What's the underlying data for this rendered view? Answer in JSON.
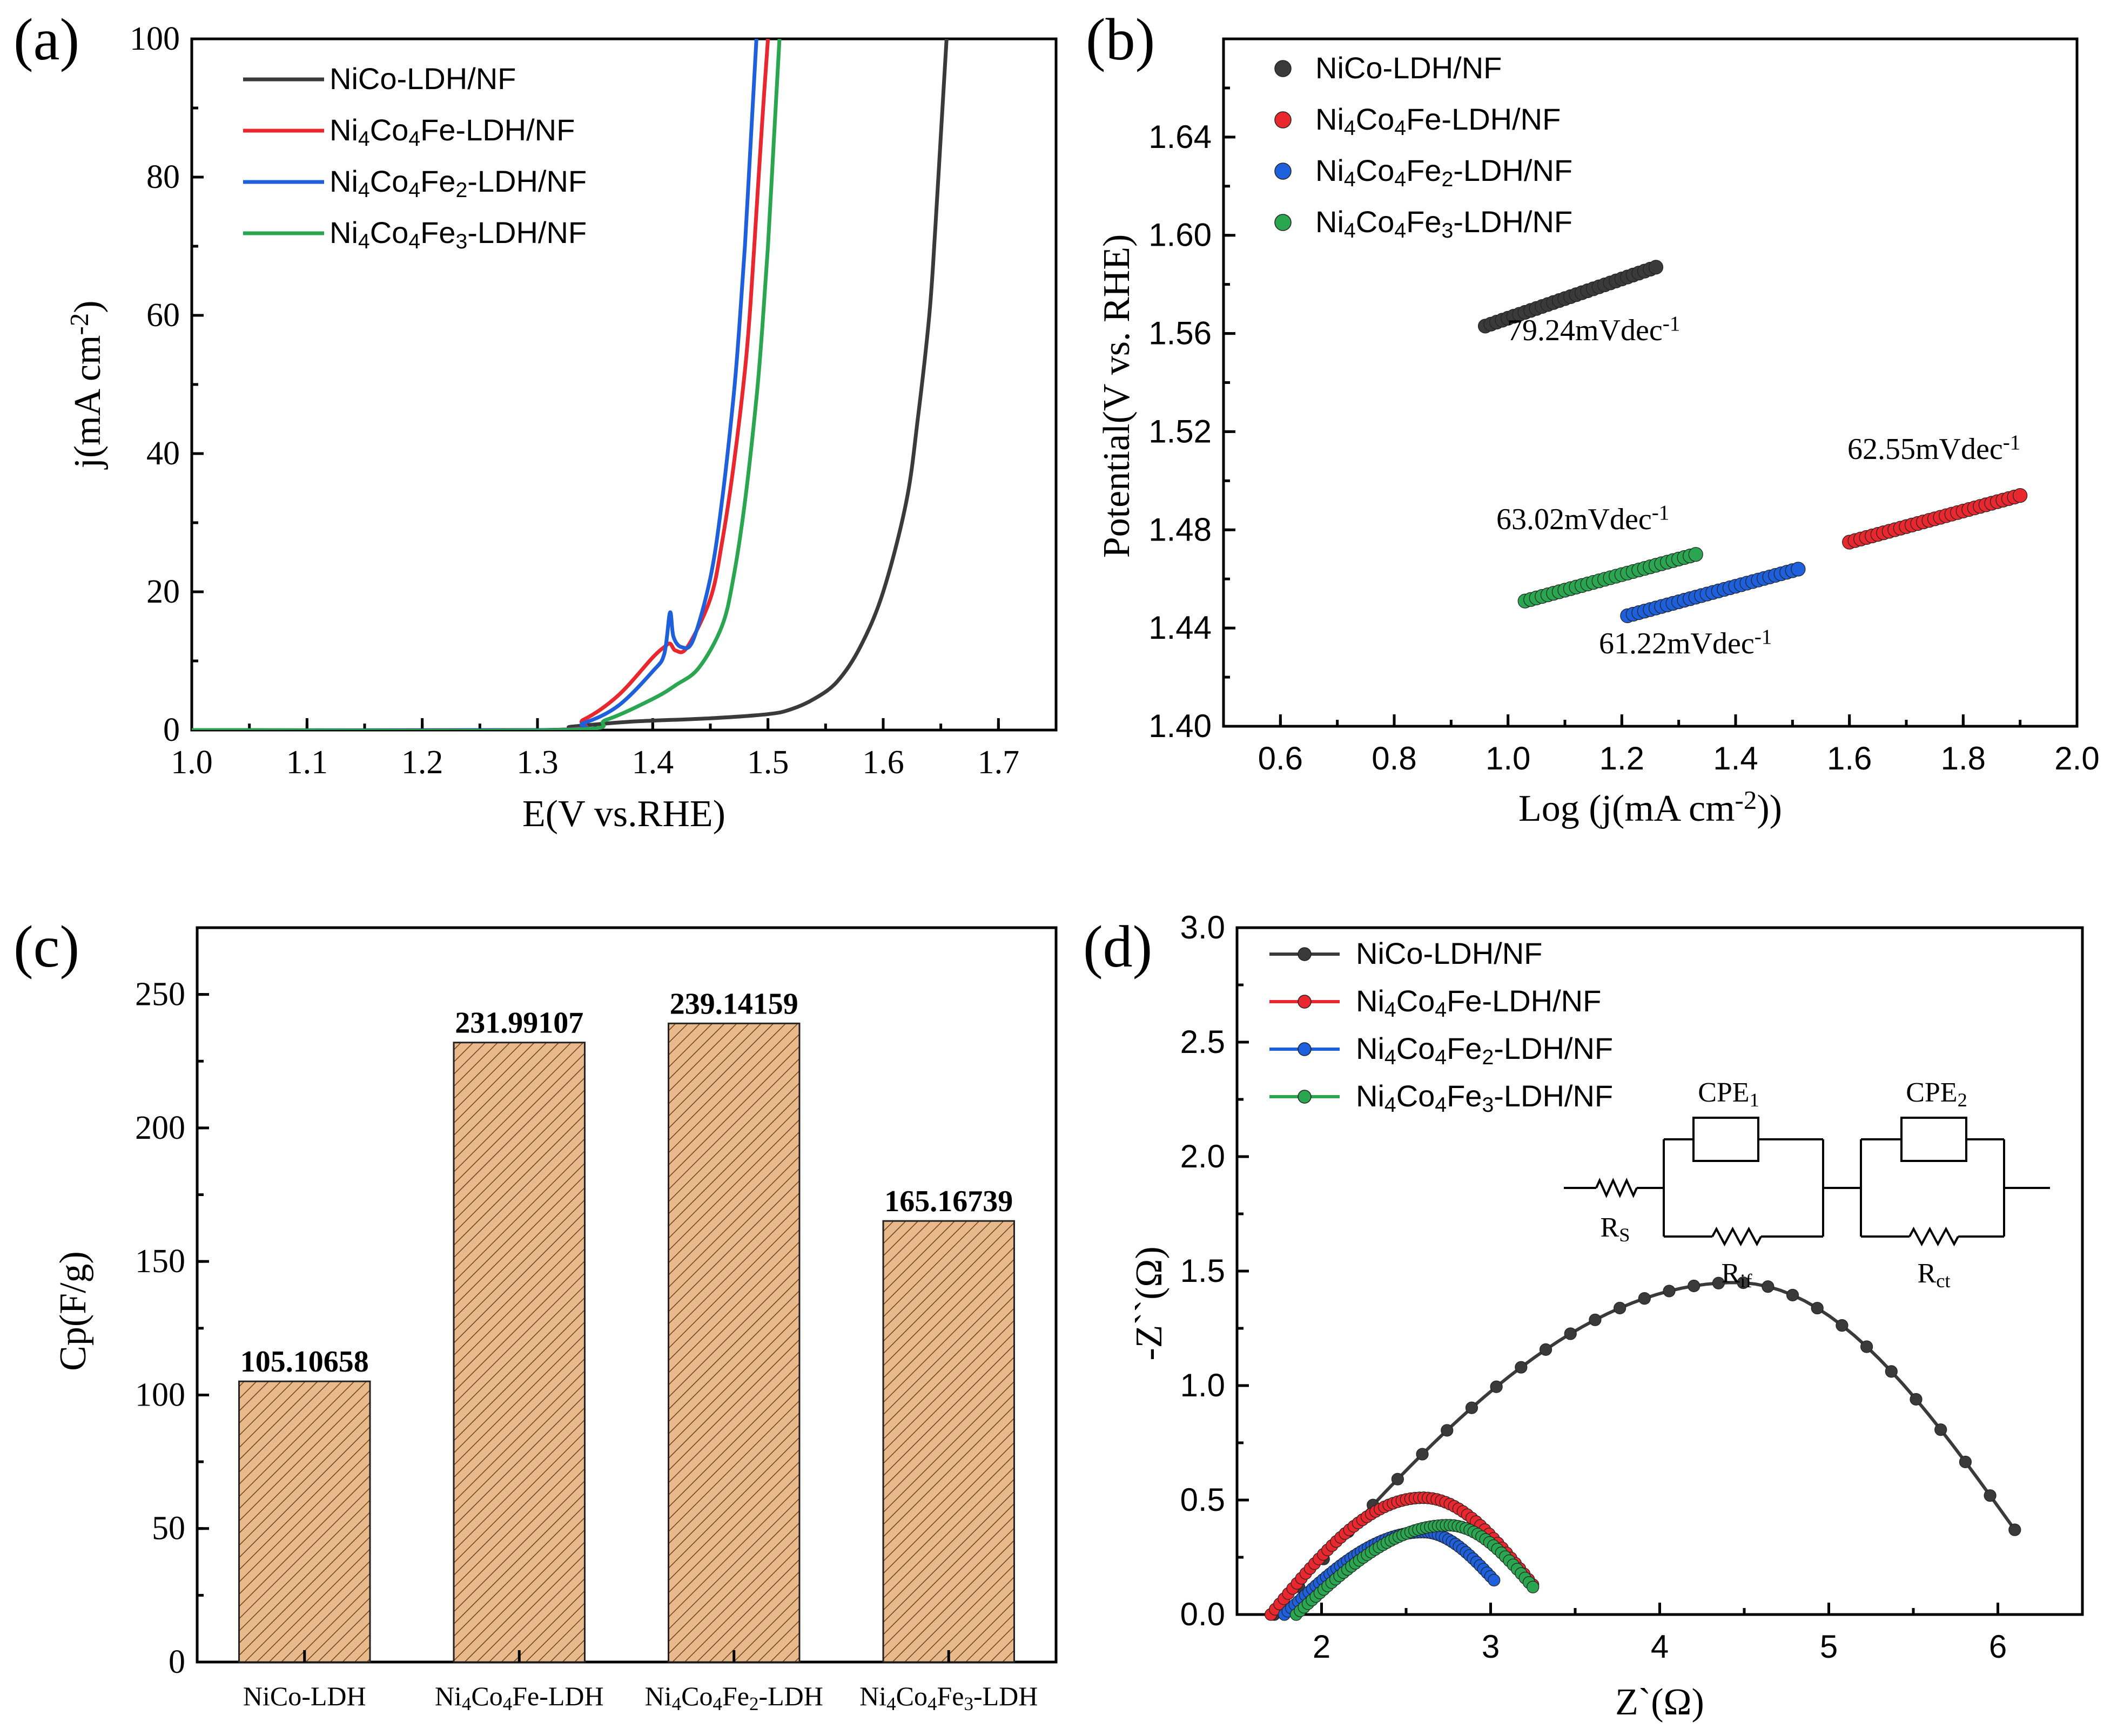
{
  "figure": {
    "panels": [
      "(a)",
      "(b)",
      "(c)",
      "(d)"
    ]
  },
  "colors": {
    "NiCo": "#3a3a3a",
    "Fe1": "#e8282e",
    "Fe2": "#1e5fdc",
    "Fe3": "#2aa550",
    "bar_fill": "#e8b98a",
    "bar_hatch": "#6a4020"
  },
  "chart_data": [
    {
      "id": "a",
      "type": "line",
      "panel_label": "(a)",
      "xlabel": "E(V vs.RHE)",
      "ylabel": "j(mA cm-2)",
      "xlim": [
        1.0,
        1.75
      ],
      "ylim": [
        0,
        100
      ],
      "xticks": [
        "1.0",
        "1.1",
        "1.2",
        "1.3",
        "1.4",
        "1.5",
        "1.6",
        "1.7"
      ],
      "yticks": [
        "0",
        "20",
        "40",
        "60",
        "80",
        "100"
      ],
      "legend_position": "top-left",
      "series": [
        {
          "name": "NiCo-LDH/NF",
          "key": "NiCo",
          "x": [
            1.0,
            1.3,
            1.33,
            1.38,
            1.45,
            1.5,
            1.52,
            1.54,
            1.56,
            1.58,
            1.6,
            1.62,
            1.63,
            1.64,
            1.645,
            1.65,
            1.655
          ],
          "y": [
            0,
            0,
            0.5,
            1.2,
            1.7,
            2.3,
            3.0,
            4.5,
            7,
            12,
            20,
            33,
            45,
            60,
            72,
            86,
            100
          ]
        },
        {
          "name": "Ni4Co4Fe-LDH/NF",
          "key": "Fe1",
          "x": [
            1.0,
            1.31,
            1.34,
            1.37,
            1.4,
            1.41,
            1.415,
            1.42,
            1.43,
            1.45,
            1.46,
            1.47,
            1.48,
            1.485,
            1.49,
            1.495,
            1.5
          ],
          "y": [
            0,
            0,
            1.5,
            5,
            10.5,
            12,
            12.5,
            11.5,
            12,
            19,
            27,
            38,
            52,
            62,
            75,
            88,
            100
          ]
        },
        {
          "name": "Ni4Co4Fe2-LDH/NF",
          "key": "Fe2",
          "x": [
            1.0,
            1.31,
            1.34,
            1.37,
            1.4,
            1.41,
            1.415,
            1.418,
            1.425,
            1.435,
            1.45,
            1.46,
            1.47,
            1.475,
            1.48,
            1.485,
            1.49
          ],
          "y": [
            0,
            0,
            1,
            3.5,
            8.5,
            11,
            17,
            13.5,
            12,
            13,
            22,
            33,
            48,
            58,
            70,
            85,
            100
          ]
        },
        {
          "name": "Ni4Co4Fe3-LDH/NF",
          "key": "Fe3",
          "x": [
            1.0,
            1.32,
            1.36,
            1.4,
            1.42,
            1.44,
            1.46,
            1.47,
            1.48,
            1.49,
            1.495,
            1.5,
            1.505,
            1.51
          ],
          "y": [
            0,
            0,
            1.5,
            4.5,
            6.5,
            9,
            15,
            22,
            33,
            48,
            58,
            70,
            85,
            100
          ]
        }
      ]
    },
    {
      "id": "b",
      "type": "scatter",
      "panel_label": "(b)",
      "xlabel": "Log (j(mA cm-2))",
      "ylabel": "Potential(V vs. RHE)",
      "xlim": [
        0.5,
        2.0
      ],
      "ylim": [
        1.4,
        1.68
      ],
      "xticks": [
        "0.6",
        "0.8",
        "1.0",
        "1.2",
        "1.4",
        "1.6",
        "1.8",
        "2.0"
      ],
      "yticks": [
        "1.40",
        "1.44",
        "1.48",
        "1.52",
        "1.56",
        "1.60",
        "1.64"
      ],
      "legend_position": "top-left",
      "series": [
        {
          "name": "NiCo-LDH/NF",
          "key": "NiCo",
          "x_range": [
            0.96,
            1.26
          ],
          "y_range": [
            1.563,
            1.587
          ],
          "slope_label": "79.24mVdec-1"
        },
        {
          "name": "Ni4Co4Fe-LDH/NF",
          "key": "Fe1",
          "x_range": [
            1.6,
            1.9
          ],
          "y_range": [
            1.475,
            1.494
          ],
          "slope_label": "62.55mVdec-1"
        },
        {
          "name": "Ni4Co4Fe2-LDH/NF",
          "key": "Fe2",
          "x_range": [
            1.21,
            1.51
          ],
          "y_range": [
            1.445,
            1.464
          ],
          "slope_label": "61.22mVdec-1"
        },
        {
          "name": "Ni4Co4Fe3-LDH/NF",
          "key": "Fe3",
          "x_range": [
            1.03,
            1.33
          ],
          "y_range": [
            1.451,
            1.47
          ],
          "slope_label": "63.02mVdec-1"
        }
      ]
    },
    {
      "id": "c",
      "type": "bar",
      "panel_label": "(c)",
      "xlabel": "",
      "ylabel": "Cp(F/g)",
      "ylim": [
        0,
        275
      ],
      "yticks": [
        "0",
        "50",
        "100",
        "150",
        "200",
        "250"
      ],
      "categories": [
        "NiCo-LDH",
        "Ni4Co4Fe-LDH",
        "Ni4Co4Fe2-LDH",
        "Ni4Co4Fe3-LDH"
      ],
      "values": [
        105.10658,
        231.99107,
        239.14159,
        165.16739
      ],
      "value_labels": [
        "105.10658",
        "231.99107",
        "239.14159",
        "165.16739"
      ]
    },
    {
      "id": "d",
      "type": "line",
      "panel_label": "(d)",
      "xlabel": "Z`(Ω)",
      "ylabel": "-Z``(Ω)",
      "xlim": [
        1.5,
        6.5
      ],
      "ylim": [
        0,
        3.0
      ],
      "xticks": [
        "2",
        "3",
        "4",
        "5",
        "6"
      ],
      "yticks": [
        "0.0",
        "0.5",
        "1.0",
        "1.5",
        "2.0",
        "2.5",
        "3.0"
      ],
      "legend_position": "top-left",
      "series": [
        {
          "name": "NiCo-LDH/NF",
          "key": "NiCo",
          "start": 1.72,
          "end": 6.1,
          "peak_x": 4.45,
          "peak_y": 1.45,
          "tail_y": 0.37
        },
        {
          "name": "Ni4Co4Fe-LDH/NF",
          "key": "Fe1",
          "start": 1.7,
          "end": 3.25,
          "peak_x": 2.6,
          "peak_y": 0.51,
          "tail_y": 0.13
        },
        {
          "name": "Ni4Co4Fe2-LDH/NF",
          "key": "Fe2",
          "start": 1.78,
          "end": 3.02,
          "peak_x": 2.6,
          "peak_y": 0.36,
          "tail_y": 0.15
        },
        {
          "name": "Ni4Co4Fe3-LDH/NF",
          "key": "Fe3",
          "start": 1.85,
          "end": 3.25,
          "peak_x": 2.75,
          "peak_y": 0.39,
          "tail_y": 0.12
        }
      ],
      "circuit": {
        "labels": {
          "rs": "RS",
          "rif": "Rif",
          "rct": "Rct",
          "cpe1": "CPE1",
          "cpe2": "CPE2"
        }
      }
    }
  ],
  "legend": [
    {
      "key": "NiCo",
      "base": "NiCo-LDH/NF",
      "parts": [
        [
          "NiCo-LDH/NF",
          ""
        ]
      ]
    },
    {
      "key": "Fe1",
      "base": "Ni4Co4Fe-LDH/NF",
      "parts": [
        [
          "Ni",
          ""
        ],
        [
          "4",
          "sub"
        ],
        [
          "Co",
          ""
        ],
        [
          "4",
          "sub"
        ],
        [
          "Fe-LDH/NF",
          ""
        ]
      ]
    },
    {
      "key": "Fe2",
      "base": "Ni4Co4Fe2-LDH/NF",
      "parts": [
        [
          "Ni",
          ""
        ],
        [
          "4",
          "sub"
        ],
        [
          "Co",
          ""
        ],
        [
          "4",
          "sub"
        ],
        [
          "Fe",
          ""
        ],
        [
          "2",
          "sub"
        ],
        [
          "-LDH/NF",
          ""
        ]
      ]
    },
    {
      "key": "Fe3",
      "base": "Ni4Co4Fe3-LDH/NF",
      "parts": [
        [
          "Ni",
          ""
        ],
        [
          "4",
          "sub"
        ],
        [
          "Co",
          ""
        ],
        [
          "4",
          "sub"
        ],
        [
          "Fe",
          ""
        ],
        [
          "3",
          "sub"
        ],
        [
          "-LDH/NF",
          ""
        ]
      ]
    }
  ]
}
